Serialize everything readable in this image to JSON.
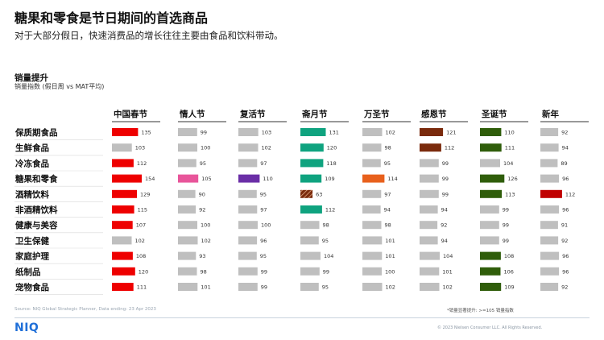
{
  "header": {
    "title": "糖果和零食是节日期间的首选商品",
    "subtitle": "对于大部分假日，快速消费品的增长往往主要由食品和饮料带动。"
  },
  "metric": {
    "title": "销量提升",
    "subtitle": "销量指数 (假日周 vs MAT平均)"
  },
  "chart_data": {
    "type": "bar",
    "layout": "small-multiples-horizontal",
    "categories": [
      "保质期食品",
      "生鲜食品",
      "冷冻食品",
      "糖果和零食",
      "酒精饮料",
      "非酒精饮料",
      "健康与美容",
      "卫生保健",
      "家庭护理",
      "纸制品",
      "宠物食品"
    ],
    "series": [
      {
        "name": "中国春节",
        "color": "#ee0000",
        "values": [
          135,
          103,
          112,
          154,
          129,
          115,
          107,
          102,
          108,
          120,
          111
        ],
        "highlight": [
          true,
          false,
          true,
          true,
          true,
          true,
          true,
          false,
          true,
          true,
          true
        ]
      },
      {
        "name": "情人节",
        "color": "#e8559a",
        "values": [
          99,
          100,
          95,
          105,
          90,
          92,
          100,
          102,
          93,
          98,
          101
        ],
        "highlight": [
          false,
          false,
          false,
          true,
          false,
          false,
          false,
          false,
          false,
          false,
          false
        ]
      },
      {
        "name": "复活节",
        "color": "#6a2ea6",
        "values": [
          103,
          102,
          97,
          110,
          95,
          97,
          100,
          96,
          95,
          99,
          99
        ],
        "highlight": [
          false,
          false,
          false,
          true,
          false,
          false,
          false,
          false,
          false,
          false,
          false
        ]
      },
      {
        "name": "斋月节",
        "color": "#0fa37f",
        "values": [
          131,
          120,
          118,
          109,
          63,
          112,
          98,
          95,
          104,
          99,
          95
        ],
        "highlight": [
          true,
          true,
          true,
          true,
          false,
          true,
          false,
          false,
          false,
          false,
          false
        ],
        "hatched": [
          false,
          false,
          false,
          false,
          true,
          false,
          false,
          false,
          false,
          false,
          false
        ]
      },
      {
        "name": "万圣节",
        "color": "#e8601c",
        "values": [
          102,
          98,
          95,
          114,
          97,
          94,
          98,
          101,
          101,
          100,
          102
        ],
        "highlight": [
          false,
          false,
          false,
          true,
          false,
          false,
          false,
          false,
          false,
          false,
          false
        ]
      },
      {
        "name": "感恩节",
        "color": "#7a2a0c",
        "values": [
          121,
          112,
          99,
          99,
          99,
          94,
          92,
          94,
          104,
          101,
          102
        ],
        "highlight": [
          true,
          true,
          false,
          false,
          false,
          false,
          false,
          false,
          false,
          false,
          false
        ]
      },
      {
        "name": "圣诞节",
        "color": "#2f5d0a",
        "values": [
          110,
          111,
          104,
          126,
          113,
          99,
          99,
          99,
          108,
          106,
          109
        ],
        "highlight": [
          true,
          true,
          false,
          true,
          true,
          false,
          false,
          false,
          true,
          true,
          true
        ]
      },
      {
        "name": "新年",
        "color": "#c00000",
        "values": [
          92,
          94,
          89,
          96,
          112,
          96,
          91,
          92,
          96,
          96,
          92
        ],
        "highlight": [
          false,
          false,
          false,
          false,
          true,
          false,
          false,
          false,
          false,
          false,
          false
        ]
      }
    ],
    "neutral_color": "#bfbfbf",
    "xlim": [
      0,
      160
    ],
    "grid": false
  },
  "footer": {
    "source": "Source: NIQ Global Strategic Planner, Data ending: 23 Apr 2023",
    "note": "*销量显著提升: >=105 销量指数",
    "logo": "NIQ",
    "copyright": "© 2023 Nielsen Consumer LLC. All Rights Reserved."
  }
}
